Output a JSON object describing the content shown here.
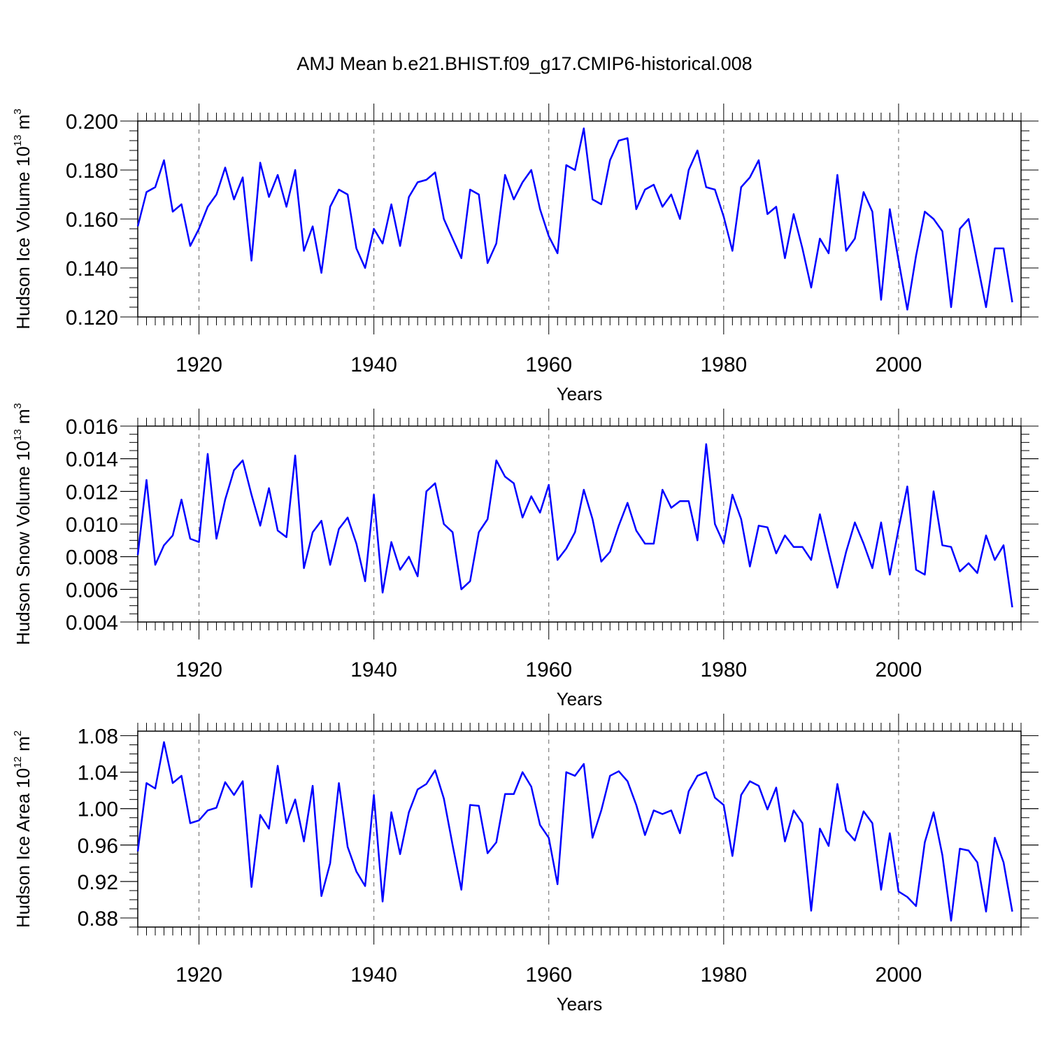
{
  "title": "AMJ Mean b.e21.BHIST.f09_g17.CMIP6-historical.008",
  "line_color": "#0000ff",
  "chart_data": [
    {
      "type": "line",
      "name": "ice-volume",
      "ylabel_main": "Hudson Ice Volume 10",
      "ylabel_exp": "13",
      "ylabel_unit": " m",
      "ylabel_unit_exp": "3",
      "xlabel": "Years",
      "xlim": [
        1913,
        2014
      ],
      "ylim": [
        0.12,
        0.2
      ],
      "xticks": [
        1920,
        1940,
        1960,
        1980,
        2000
      ],
      "xtick_labels": [
        "1920",
        "1940",
        "1960",
        "1980",
        "2000"
      ],
      "yticks": [
        0.12,
        0.14,
        0.16,
        0.18,
        0.2
      ],
      "ytick_labels": [
        "0.120",
        "0.140",
        "0.160",
        "0.180",
        "0.200"
      ],
      "yminor_step": 0.004,
      "grid": "dashed vertical at major x ticks",
      "x_start": 1913,
      "values": [
        0.157,
        0.171,
        0.173,
        0.184,
        0.163,
        0.166,
        0.149,
        0.156,
        0.165,
        0.17,
        0.181,
        0.168,
        0.177,
        0.143,
        0.183,
        0.169,
        0.178,
        0.165,
        0.18,
        0.147,
        0.157,
        0.138,
        0.165,
        0.172,
        0.17,
        0.148,
        0.14,
        0.156,
        0.15,
        0.166,
        0.149,
        0.169,
        0.175,
        0.176,
        0.179,
        0.16,
        0.152,
        0.144,
        0.172,
        0.17,
        0.142,
        0.15,
        0.178,
        0.168,
        0.175,
        0.18,
        0.164,
        0.153,
        0.146,
        0.182,
        0.18,
        0.197,
        0.168,
        0.166,
        0.184,
        0.192,
        0.193,
        0.164,
        0.172,
        0.174,
        0.165,
        0.17,
        0.16,
        0.18,
        0.188,
        0.173,
        0.172,
        0.161,
        0.147,
        0.173,
        0.177,
        0.184,
        0.162,
        0.165,
        0.144,
        0.162,
        0.148,
        0.132,
        0.152,
        0.146,
        0.178,
        0.147,
        0.152,
        0.171,
        0.163,
        0.127,
        0.164,
        0.143,
        0.123,
        0.145,
        0.163,
        0.16,
        0.155,
        0.124,
        0.156,
        0.16,
        0.142,
        0.124,
        0.148,
        0.148,
        0.126
      ]
    },
    {
      "type": "line",
      "name": "snow-volume",
      "ylabel_main": "Hudson Snow Volume 10",
      "ylabel_exp": "13",
      "ylabel_unit": " m",
      "ylabel_unit_exp": "3",
      "xlabel": "Years",
      "xlim": [
        1913,
        2014
      ],
      "ylim": [
        0.004,
        0.016
      ],
      "xticks": [
        1920,
        1940,
        1960,
        1980,
        2000
      ],
      "xtick_labels": [
        "1920",
        "1940",
        "1960",
        "1980",
        "2000"
      ],
      "yticks": [
        0.004,
        0.006,
        0.008,
        0.01,
        0.012,
        0.014,
        0.016
      ],
      "ytick_labels": [
        "0.004",
        "0.006",
        "0.008",
        "0.010",
        "0.012",
        "0.014",
        "0.016"
      ],
      "yminor_step": 0.0005,
      "grid": "dashed vertical at major x ticks",
      "x_start": 1913,
      "values": [
        0.0081,
        0.0127,
        0.0075,
        0.0087,
        0.0093,
        0.0115,
        0.0091,
        0.0089,
        0.0143,
        0.0091,
        0.0115,
        0.0133,
        0.0139,
        0.0118,
        0.0099,
        0.0122,
        0.0096,
        0.0092,
        0.0142,
        0.0073,
        0.0095,
        0.0102,
        0.0075,
        0.0097,
        0.0104,
        0.0088,
        0.0065,
        0.0118,
        0.0058,
        0.0089,
        0.0072,
        0.008,
        0.0068,
        0.012,
        0.0125,
        0.01,
        0.0095,
        0.006,
        0.0065,
        0.0095,
        0.0103,
        0.0139,
        0.0129,
        0.0125,
        0.0104,
        0.0117,
        0.0107,
        0.0124,
        0.0078,
        0.0085,
        0.0095,
        0.0121,
        0.0103,
        0.0077,
        0.0083,
        0.0099,
        0.0113,
        0.0096,
        0.0088,
        0.0088,
        0.0121,
        0.011,
        0.0114,
        0.0114,
        0.009,
        0.0149,
        0.01,
        0.0088,
        0.0118,
        0.0103,
        0.0074,
        0.0099,
        0.0098,
        0.0082,
        0.0093,
        0.0086,
        0.0086,
        0.0078,
        0.0106,
        0.0083,
        0.0061,
        0.0083,
        0.0101,
        0.0088,
        0.0073,
        0.0101,
        0.0069,
        0.0097,
        0.0123,
        0.0072,
        0.0069,
        0.012,
        0.0087,
        0.0086,
        0.0071,
        0.0076,
        0.007,
        0.0093,
        0.0078,
        0.0087,
        0.0049
      ]
    },
    {
      "type": "line",
      "name": "ice-area",
      "ylabel_main": "Hudson Ice Area 10",
      "ylabel_exp": "12",
      "ylabel_unit": " m",
      "ylabel_unit_exp": "2",
      "xlabel": "Years",
      "xlim": [
        1913,
        2014
      ],
      "ylim": [
        0.87,
        1.085
      ],
      "xticks": [
        1920,
        1940,
        1960,
        1980,
        2000
      ],
      "xtick_labels": [
        "1920",
        "1940",
        "1960",
        "1980",
        "2000"
      ],
      "yticks": [
        0.88,
        0.92,
        0.96,
        1.0,
        1.04,
        1.08
      ],
      "ytick_labels": [
        "0.88",
        "0.92",
        "0.96",
        "1.00",
        "1.04",
        "1.08"
      ],
      "yminor_step": 0.01,
      "grid": "dashed vertical at major x ticks",
      "x_start": 1913,
      "values": [
        0.953,
        1.028,
        1.022,
        1.073,
        1.028,
        1.036,
        0.984,
        0.987,
        0.998,
        1.001,
        1.029,
        1.015,
        1.03,
        0.914,
        0.993,
        0.978,
        1.047,
        0.984,
        1.01,
        0.964,
        1.025,
        0.904,
        0.94,
        1.028,
        0.958,
        0.931,
        0.915,
        1.015,
        0.898,
        0.996,
        0.95,
        0.996,
        1.021,
        1.027,
        1.042,
        1.011,
        0.96,
        0.911,
        1.004,
        1.003,
        0.951,
        0.963,
        1.016,
        1.016,
        1.04,
        1.024,
        0.982,
        0.968,
        0.917,
        1.04,
        1.036,
        1.049,
        0.968,
        0.998,
        1.036,
        1.041,
        1.03,
        1.004,
        0.971,
        0.998,
        0.994,
        0.998,
        0.973,
        1.019,
        1.036,
        1.04,
        1.012,
        1.004,
        0.948,
        1.015,
        1.03,
        1.025,
        0.999,
        1.023,
        0.964,
        0.998,
        0.984,
        0.888,
        0.978,
        0.959,
        1.027,
        0.976,
        0.965,
        0.997,
        0.984,
        0.911,
        0.973,
        0.909,
        0.903,
        0.893,
        0.963,
        0.996,
        0.949,
        0.877,
        0.956,
        0.954,
        0.941,
        0.887,
        0.968,
        0.941,
        0.887
      ]
    }
  ]
}
